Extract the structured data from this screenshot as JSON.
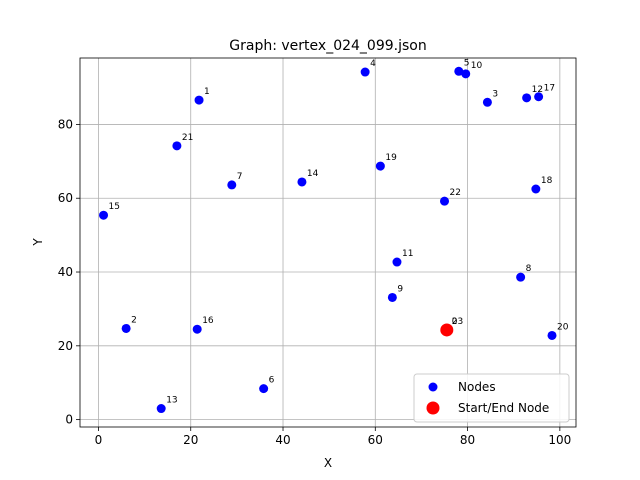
{
  "chart_data": {
    "type": "scatter",
    "title": "Graph: vertex_024_099.json",
    "xlabel": "X",
    "ylabel": "Y",
    "xlim": [
      -4,
      103.5
    ],
    "ylim": [
      -2,
      98
    ],
    "xticks": [
      0,
      20,
      40,
      60,
      80,
      100
    ],
    "yticks": [
      0,
      20,
      40,
      60,
      80
    ],
    "grid": true,
    "legend": {
      "placement": "lower-right",
      "entries": [
        {
          "label": "Nodes",
          "color": "#0000ff"
        },
        {
          "label": "Start/End Node",
          "color": "#ff0000"
        }
      ]
    },
    "series": [
      {
        "name": "Nodes",
        "color": "#0000ff",
        "points": [
          {
            "label": "0",
            "x": 75.5,
            "y": 24.3
          },
          {
            "label": "1",
            "x": 21.8,
            "y": 86.6
          },
          {
            "label": "2",
            "x": 6.0,
            "y": 24.7
          },
          {
            "label": "3",
            "x": 84.3,
            "y": 86.0
          },
          {
            "label": "4",
            "x": 57.8,
            "y": 94.2
          },
          {
            "label": "5",
            "x": 78.1,
            "y": 94.4
          },
          {
            "label": "6",
            "x": 35.8,
            "y": 8.4
          },
          {
            "label": "7",
            "x": 28.9,
            "y": 63.6
          },
          {
            "label": "8",
            "x": 91.5,
            "y": 38.6
          },
          {
            "label": "9",
            "x": 63.7,
            "y": 33.1
          },
          {
            "label": "10",
            "x": 79.6,
            "y": 93.7
          },
          {
            "label": "11",
            "x": 64.7,
            "y": 42.7
          },
          {
            "label": "12",
            "x": 92.8,
            "y": 87.2
          },
          {
            "label": "13",
            "x": 13.6,
            "y": 3.0
          },
          {
            "label": "14",
            "x": 44.1,
            "y": 64.4
          },
          {
            "label": "15",
            "x": 1.1,
            "y": 55.4
          },
          {
            "label": "16",
            "x": 21.4,
            "y": 24.5
          },
          {
            "label": "17",
            "x": 95.4,
            "y": 87.5
          },
          {
            "label": "18",
            "x": 94.8,
            "y": 62.5
          },
          {
            "label": "19",
            "x": 61.1,
            "y": 68.7
          },
          {
            "label": "20",
            "x": 98.3,
            "y": 22.8
          },
          {
            "label": "21",
            "x": 17.0,
            "y": 74.2
          },
          {
            "label": "22",
            "x": 75.0,
            "y": 59.2
          },
          {
            "label": "23",
            "x": 75.5,
            "y": 24.3
          }
        ]
      },
      {
        "name": "Start/End Node",
        "color": "#ff0000",
        "points": [
          {
            "label": "",
            "x": 75.5,
            "y": 24.3
          }
        ]
      }
    ]
  }
}
